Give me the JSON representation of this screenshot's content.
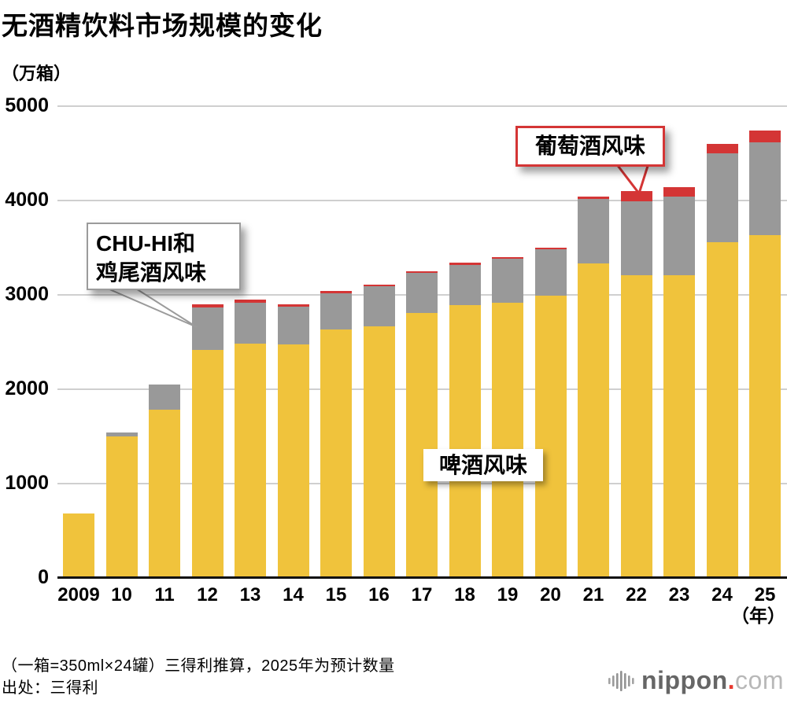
{
  "title": "无酒精饮料市场规模的变化",
  "y_unit_label": "（万箱）",
  "x_unit_label": "（年）",
  "annotations": {
    "chuhi_line1": "CHU-HI和",
    "chuhi_line2": "鸡尾酒风味",
    "wine": "葡萄酒风味",
    "beer": "啤酒风味"
  },
  "footnotes": {
    "line1": "（一箱=350ml×24罐）三得利推算，2025年为预计数量",
    "line2": "出处：三得利"
  },
  "logo": {
    "name": "nippon",
    "dot": ".",
    "tld": "com"
  },
  "colors": {
    "beer": "#f0c33c",
    "chuhi": "#999999",
    "wine": "#d43535",
    "grid": "#cfcfcf",
    "axis": "#111111",
    "wine_box_border": "#d43535",
    "gray_box_border": "#9b9b9b"
  },
  "chart_data": {
    "type": "bar",
    "stacked": true,
    "title": "无酒精饮料市场规模的变化",
    "ylabel": "（万箱）",
    "xlabel": "（年）",
    "ylim": [
      0,
      5000
    ],
    "ytick_step": 1000,
    "yticks": [
      "0",
      "1000",
      "2000",
      "3000",
      "4000",
      "5000"
    ],
    "grid": true,
    "legend_position": "in-chart callout labels",
    "categories": [
      "2009",
      "10",
      "11",
      "12",
      "13",
      "14",
      "15",
      "16",
      "17",
      "18",
      "19",
      "20",
      "21",
      "22",
      "23",
      "24",
      "25"
    ],
    "series": [
      {
        "name": "啤酒风味",
        "color": "#f0c33c",
        "values": [
          680,
          1500,
          1780,
          2420,
          2480,
          2475,
          2630,
          2670,
          2810,
          2890,
          2920,
          2990,
          3330,
          3210,
          3210,
          3560,
          3630
        ]
      },
      {
        "name": "CHU-HI和鸡尾酒风味",
        "color": "#999999",
        "values": [
          0,
          40,
          270,
          450,
          440,
          400,
          390,
          420,
          420,
          430,
          460,
          495,
          685,
          780,
          830,
          940,
          985
        ]
      },
      {
        "name": "葡萄酒风味",
        "color": "#d43535",
        "values": [
          0,
          0,
          0,
          30,
          30,
          25,
          20,
          20,
          20,
          20,
          20,
          15,
          25,
          110,
          105,
          100,
          125
        ]
      }
    ],
    "totals": [
      680,
      1540,
      2050,
      2900,
      2950,
      2900,
      3040,
      3110,
      3250,
      3340,
      3400,
      3500,
      4040,
      4100,
      4145,
      4600,
      4740
    ],
    "footnote": "（一箱=350ml×24罐）三得利推算，2025年为预计数量 出处：三得利"
  }
}
